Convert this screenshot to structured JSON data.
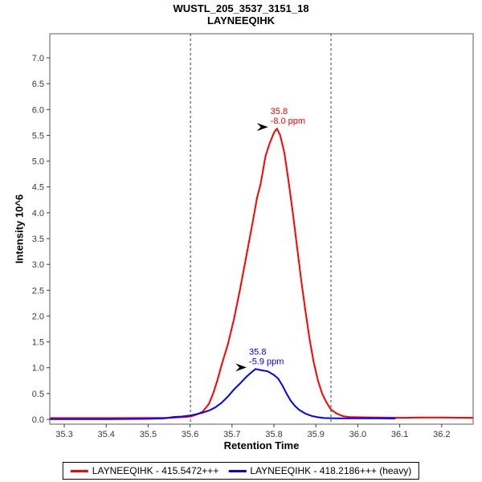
{
  "chart_data": {
    "type": "line",
    "title": "WUSTL_205_3537_3151_18",
    "subtitle": "LAYNEEQIHK",
    "xlabel": "Retention Time",
    "ylabel": "Intensity 10^6",
    "xlim": [
      35.2655,
      36.2751
    ],
    "ylim": [
      -0.0933,
      7.4667
    ],
    "x_ticks": [
      35.3,
      35.4,
      35.5,
      35.6,
      35.7,
      35.8,
      35.9,
      36.0,
      36.1,
      36.2
    ],
    "y_ticks": [
      0.0,
      0.5,
      1.0,
      1.5,
      2.0,
      2.5,
      3.0,
      3.5,
      4.0,
      4.5,
      5.0,
      5.5,
      6.0,
      6.5,
      7.0
    ],
    "grid": false,
    "legend_position": "bottom",
    "boundaries_rt": [
      35.601,
      35.936
    ],
    "frame_color": "#808080",
    "boundary_color": "#3c3c3c",
    "tick_color": "#3a3a3a",
    "series": [
      {
        "name": "LAYNEEQIHK - 415.5472+++",
        "color": "#ff0000",
        "annotation": {
          "line1": "35.8",
          "line2": "-8.0 ppm"
        },
        "points": [
          [
            35.266,
            0.025
          ],
          [
            35.35,
            0.025
          ],
          [
            35.45,
            0.025
          ],
          [
            35.55,
            0.03
          ],
          [
            35.58,
            0.04
          ],
          [
            35.601,
            0.055
          ],
          [
            35.615,
            0.09
          ],
          [
            35.63,
            0.15
          ],
          [
            35.645,
            0.3
          ],
          [
            35.655,
            0.5
          ],
          [
            35.665,
            0.75
          ],
          [
            35.675,
            1.05
          ],
          [
            35.69,
            1.45
          ],
          [
            35.705,
            1.95
          ],
          [
            35.72,
            2.55
          ],
          [
            35.735,
            3.2
          ],
          [
            35.75,
            3.85
          ],
          [
            35.76,
            4.3
          ],
          [
            35.768,
            4.55
          ],
          [
            35.78,
            5.1
          ],
          [
            35.79,
            5.35
          ],
          [
            35.8,
            5.55
          ],
          [
            35.807,
            5.63
          ],
          [
            35.815,
            5.5
          ],
          [
            35.825,
            5.15
          ],
          [
            35.835,
            4.6
          ],
          [
            35.845,
            4.0
          ],
          [
            35.855,
            3.35
          ],
          [
            35.865,
            2.7
          ],
          [
            35.875,
            2.1
          ],
          [
            35.885,
            1.55
          ],
          [
            35.895,
            1.1
          ],
          [
            35.905,
            0.75
          ],
          [
            35.915,
            0.5
          ],
          [
            35.925,
            0.33
          ],
          [
            35.936,
            0.19
          ],
          [
            35.95,
            0.11
          ],
          [
            35.965,
            0.06
          ],
          [
            35.98,
            0.045
          ],
          [
            36.0,
            0.04
          ],
          [
            36.05,
            0.035
          ],
          [
            36.1,
            0.03
          ],
          [
            36.15,
            0.035
          ],
          [
            36.2,
            0.035
          ],
          [
            36.275,
            0.03
          ]
        ]
      },
      {
        "name": "LAYNEEQIHK - 418.2186+++ (heavy)",
        "color": "#0000ff",
        "annotation": {
          "line1": "35.8",
          "line2": "-5.9 ppm"
        },
        "points": [
          [
            35.266,
            0.005
          ],
          [
            35.4,
            0.005
          ],
          [
            35.5,
            0.01
          ],
          [
            35.54,
            0.02
          ],
          [
            35.56,
            0.045
          ],
          [
            35.58,
            0.055
          ],
          [
            35.601,
            0.075
          ],
          [
            35.615,
            0.1
          ],
          [
            35.63,
            0.13
          ],
          [
            35.645,
            0.17
          ],
          [
            35.66,
            0.23
          ],
          [
            35.675,
            0.32
          ],
          [
            35.69,
            0.44
          ],
          [
            35.705,
            0.58
          ],
          [
            35.72,
            0.7
          ],
          [
            35.735,
            0.83
          ],
          [
            35.745,
            0.9
          ],
          [
            35.756,
            0.975
          ],
          [
            35.77,
            0.95
          ],
          [
            35.785,
            0.93
          ],
          [
            35.8,
            0.86
          ],
          [
            35.81,
            0.79
          ],
          [
            35.82,
            0.66
          ],
          [
            35.83,
            0.5
          ],
          [
            35.84,
            0.36
          ],
          [
            35.85,
            0.26
          ],
          [
            35.86,
            0.185
          ],
          [
            35.875,
            0.11
          ],
          [
            35.89,
            0.065
          ],
          [
            35.905,
            0.04
          ],
          [
            35.92,
            0.025
          ],
          [
            35.95,
            0.02
          ],
          [
            36.0,
            0.02
          ],
          [
            36.05,
            0.02
          ],
          [
            36.09,
            0.015
          ]
        ]
      }
    ]
  }
}
